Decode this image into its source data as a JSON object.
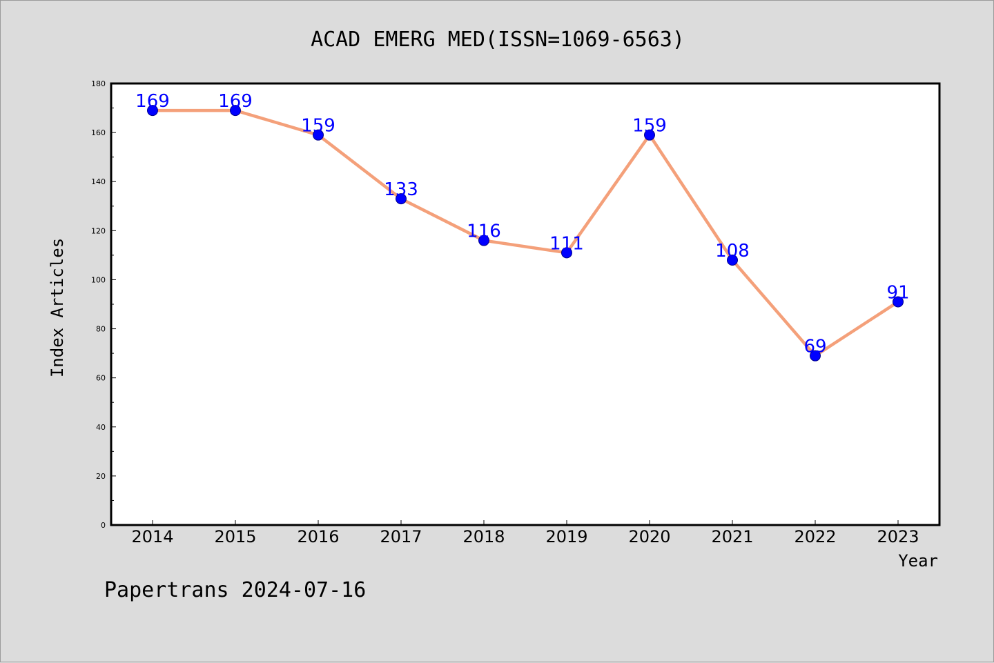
{
  "chart_data": {
    "type": "line",
    "title": "ACAD EMERG MED(ISSN=1069-6563)",
    "xlabel": "Year",
    "ylabel": "Index Articles",
    "categories": [
      "2014",
      "2015",
      "2016",
      "2017",
      "2018",
      "2019",
      "2020",
      "2021",
      "2022",
      "2023"
    ],
    "values": [
      169,
      169,
      159,
      133,
      116,
      111,
      159,
      108,
      69,
      91
    ],
    "data_labels": [
      "169",
      "169",
      "159",
      "133",
      "116",
      "111",
      "159",
      "108",
      "69",
      "91"
    ],
    "ylim": [
      0,
      180
    ],
    "yticks": [
      "0",
      "20",
      "40",
      "60",
      "80",
      "100",
      "120",
      "140",
      "160",
      "180"
    ],
    "grid": false,
    "legend": "none",
    "line_color": "#f4a07a",
    "marker_color": "#0000ff"
  },
  "footer": {
    "text": "Papertrans 2024-07-16"
  }
}
